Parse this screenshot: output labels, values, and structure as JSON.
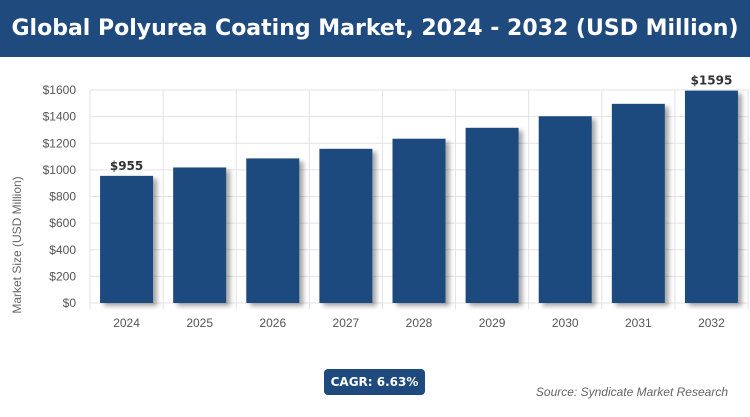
{
  "header": {
    "title": "Global Polyurea Coating Market, 2024 - 2032 (USD Million)"
  },
  "badge": {
    "cagr": "CAGR: 6.63%"
  },
  "footer": {
    "source": "Source: Syndicate Market Research"
  },
  "colors": {
    "bar": "#1f4a7e",
    "title_bg": "#1f4a7e",
    "grid": "#e3e3e3"
  },
  "chart_data": {
    "type": "bar",
    "categories": [
      "2024",
      "2025",
      "2026",
      "2027",
      "2028",
      "2029",
      "2030",
      "2031",
      "2032"
    ],
    "values": [
      955,
      1018,
      1086,
      1158,
      1234,
      1316,
      1403,
      1496,
      1595
    ],
    "data_labels": {
      "2024": "$955",
      "2032": "$1595"
    },
    "ylabel": "Market Size (USD Million)",
    "ylim": [
      0,
      1600
    ],
    "yticks": [
      0,
      200,
      400,
      600,
      800,
      1000,
      1200,
      1400,
      1600
    ],
    "ytick_labels": [
      "$0",
      "$200",
      "$400",
      "$600",
      "$800",
      "$1000",
      "$1200",
      "$1400",
      "$1600"
    ],
    "grid": true
  }
}
